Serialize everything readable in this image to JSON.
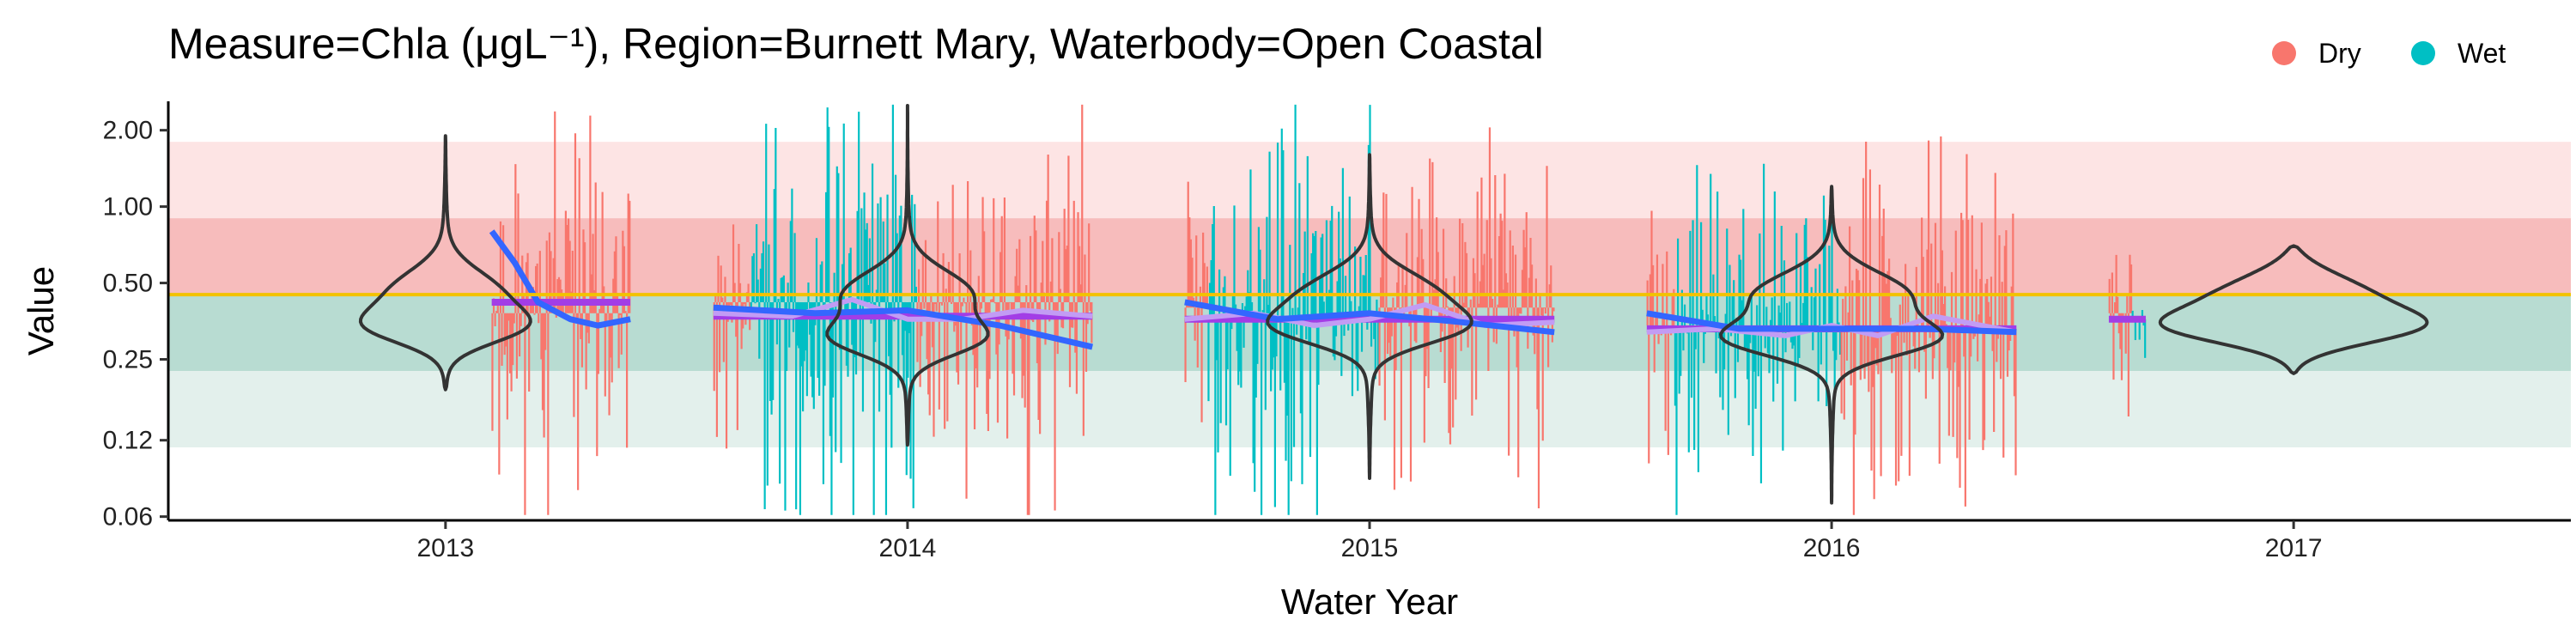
{
  "chart_data": {
    "type": "scatter",
    "title": "Measure=Chla (μgL⁻¹), Region=Burnett Mary, Waterbody=Open Coastal",
    "xlabel": "Water Year",
    "ylabel": "Value",
    "y_scale": "log",
    "ylim": [
      0.058,
      2.6
    ],
    "xlim": [
      2012.4,
      2017.6
    ],
    "x_ticks": [
      "2013",
      "2014",
      "2015",
      "2016",
      "2017"
    ],
    "y_ticks": [
      "0.06",
      "0.12",
      "0.25",
      "0.50",
      "1.00",
      "2.00"
    ],
    "y_tick_values": [
      0.06,
      0.12,
      0.25,
      0.5,
      1.0,
      2.0
    ],
    "guideline": 0.45,
    "guideline_color": "#F2C200",
    "bands": [
      {
        "from": 0.9,
        "to": 1.8,
        "color": "#FDE4E4"
      },
      {
        "from": 0.45,
        "to": 0.9,
        "color": "#F7BCBC"
      },
      {
        "from": 0.225,
        "to": 0.45,
        "color": "#B8DCD2"
      },
      {
        "from": 0.1125,
        "to": 0.225,
        "color": "#E3F0EC"
      }
    ],
    "legend": {
      "position": "top-right",
      "entries": [
        {
          "label": "Dry",
          "color": "#F8766D"
        },
        {
          "label": "Wet",
          "color": "#00BFC4"
        }
      ]
    },
    "seasons": [
      {
        "year": 2013,
        "start": 2013.1,
        "end": 2013.4,
        "season": "Dry",
        "median": 0.38,
        "spread": 1.9,
        "seed": 11
      },
      {
        "year": 2014,
        "start": 2013.58,
        "end": 2013.66,
        "season": "Dry",
        "median": 0.42,
        "spread": 1.6,
        "seed": 21
      },
      {
        "year": 2014,
        "start": 2013.66,
        "end": 2014.02,
        "season": "Wet",
        "median": 0.42,
        "spread": 2.3,
        "seed": 22
      },
      {
        "year": 2014,
        "start": 2014.02,
        "end": 2014.4,
        "season": "Dry",
        "median": 0.42,
        "spread": 1.9,
        "seed": 23
      },
      {
        "year": 2015,
        "start": 2014.6,
        "end": 2014.65,
        "season": "Dry",
        "median": 0.4,
        "spread": 1.6,
        "seed": 31
      },
      {
        "year": 2015,
        "start": 2014.65,
        "end": 2015.02,
        "season": "Wet",
        "median": 0.36,
        "spread": 2.3,
        "seed": 32
      },
      {
        "year": 2015,
        "start": 2015.02,
        "end": 2015.4,
        "season": "Dry",
        "median": 0.4,
        "spread": 1.9,
        "seed": 33
      },
      {
        "year": 2016,
        "start": 2015.6,
        "end": 2015.66,
        "season": "Dry",
        "median": 0.34,
        "spread": 1.5,
        "seed": 41
      },
      {
        "year": 2016,
        "start": 2015.66,
        "end": 2016.02,
        "season": "Wet",
        "median": 0.32,
        "spread": 1.8,
        "seed": 42
      },
      {
        "year": 2016,
        "start": 2016.02,
        "end": 2016.4,
        "season": "Dry",
        "median": 0.33,
        "spread": 2.1,
        "seed": 43
      },
      {
        "year": 2017,
        "start": 2016.6,
        "end": 2016.65,
        "season": "Dry",
        "median": 0.38,
        "spread": 1.4,
        "seed": 51
      },
      {
        "year": 2017,
        "start": 2016.65,
        "end": 2016.68,
        "season": "Wet",
        "median": 0.36,
        "spread": 1.2,
        "seed": 52
      }
    ],
    "violins": [
      {
        "x": 2013.0,
        "min": 0.19,
        "max": 1.9,
        "lower_mode": 0.33,
        "upper_mode": 0.45,
        "lower_width": 0.3,
        "upper_width": 0.22,
        "skew": -1
      },
      {
        "x": 2014.0,
        "min": 0.115,
        "max": 2.5,
        "lower_mode": 0.3,
        "upper_mode": 0.45,
        "lower_width": 0.3,
        "upper_width": 0.26,
        "skew": 1
      },
      {
        "x": 2015.0,
        "min": 0.085,
        "max": 1.6,
        "lower_mode": 0.33,
        "upper_mode": 0.45,
        "lower_width": 0.31,
        "upper_width": 0.27,
        "skew": 1
      },
      {
        "x": 2016.0,
        "min": 0.068,
        "max": 1.2,
        "lower_mode": 0.3,
        "upper_mode": 0.45,
        "lower_width": 0.4,
        "upper_width": 0.33,
        "skew": 1
      },
      {
        "x": 2017.0,
        "min": 0.22,
        "max": 0.7,
        "lower_mode": 0.33,
        "upper_mode": 0.45,
        "lower_width": 0.45,
        "upper_width": 0.3,
        "skew": 1
      }
    ],
    "medians": [
      {
        "from": 2013.1,
        "to": 2013.4,
        "value": 0.42
      },
      {
        "from": 2013.58,
        "to": 2014.4,
        "value": 0.37
      },
      {
        "from": 2014.6,
        "to": 2015.4,
        "value": 0.36
      },
      {
        "from": 2015.6,
        "to": 2016.4,
        "value": 0.33
      },
      {
        "from": 2016.6,
        "to": 2016.68,
        "value": 0.36
      }
    ],
    "trends": [
      {
        "points": [
          [
            2013.1,
            0.8
          ],
          [
            2013.15,
            0.6
          ],
          [
            2013.2,
            0.42
          ],
          [
            2013.27,
            0.36
          ],
          [
            2013.33,
            0.34
          ],
          [
            2013.4,
            0.36
          ]
        ]
      },
      {
        "points": [
          [
            2013.58,
            0.4
          ],
          [
            2013.8,
            0.38
          ],
          [
            2014.0,
            0.39
          ],
          [
            2014.2,
            0.34
          ],
          [
            2014.4,
            0.28
          ]
        ]
      },
      {
        "points": [
          [
            2014.6,
            0.42
          ],
          [
            2014.8,
            0.36
          ],
          [
            2015.0,
            0.38
          ],
          [
            2015.2,
            0.35
          ],
          [
            2015.4,
            0.32
          ]
        ]
      },
      {
        "points": [
          [
            2015.6,
            0.38
          ],
          [
            2015.8,
            0.33
          ],
          [
            2016.0,
            0.33
          ],
          [
            2016.2,
            0.33
          ],
          [
            2016.4,
            0.32
          ]
        ]
      }
    ],
    "smooths": [
      {
        "points": [
          [
            2013.58,
            0.38
          ],
          [
            2013.75,
            0.37
          ],
          [
            2013.88,
            0.43
          ],
          [
            2014.0,
            0.36
          ],
          [
            2014.12,
            0.36
          ],
          [
            2014.25,
            0.39
          ],
          [
            2014.4,
            0.37
          ]
        ]
      },
      {
        "points": [
          [
            2014.6,
            0.36
          ],
          [
            2014.75,
            0.38
          ],
          [
            2014.88,
            0.34
          ],
          [
            2015.0,
            0.36
          ],
          [
            2015.12,
            0.41
          ],
          [
            2015.25,
            0.34
          ],
          [
            2015.4,
            0.35
          ]
        ]
      },
      {
        "points": [
          [
            2015.6,
            0.32
          ],
          [
            2015.75,
            0.33
          ],
          [
            2015.9,
            0.31
          ],
          [
            2016.0,
            0.34
          ],
          [
            2016.1,
            0.31
          ],
          [
            2016.22,
            0.37
          ],
          [
            2016.4,
            0.32
          ]
        ]
      }
    ]
  }
}
